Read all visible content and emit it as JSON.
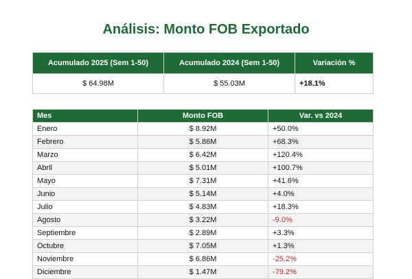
{
  "title": "Análisis: Monto FOB Exportado",
  "summary": {
    "headers": [
      "Acumulado 2025 (Sem 1-50)",
      "Acumulado 2024 (Sem 1-50)",
      "Variación %"
    ],
    "values": [
      "$ 64.98M",
      "$ 55.03M",
      "+18.1%"
    ]
  },
  "monthly": {
    "headers": [
      "Mes",
      "Monto FOB",
      "Var. vs 2024"
    ],
    "rows": [
      {
        "mes": "Enero",
        "monto": "$ 8.92M",
        "var": "+50.0%"
      },
      {
        "mes": "Febrero",
        "monto": "$ 5.86M",
        "var": "+68.3%"
      },
      {
        "mes": "Marzo",
        "monto": "$ 6.42M",
        "var": "+120.4%"
      },
      {
        "mes": "Abril",
        "monto": "$ 5.01M",
        "var": "+100.7%"
      },
      {
        "mes": "Mayo",
        "monto": "$ 7.31M",
        "var": "+41.6%"
      },
      {
        "mes": "Junio",
        "monto": "$ 5.14M",
        "var": "+4.0%"
      },
      {
        "mes": "Julio",
        "monto": "$ 4.83M",
        "var": "+18.3%"
      },
      {
        "mes": "Agosto",
        "monto": "$ 3.22M",
        "var": "-9.0%"
      },
      {
        "mes": "Septiembre",
        "monto": "$ 2.89M",
        "var": "+3.3%"
      },
      {
        "mes": "Octubre",
        "monto": "$ 7.05M",
        "var": "+1.3%"
      },
      {
        "mes": "Noviembre",
        "monto": "$ 6.86M",
        "var": "-25.2%"
      },
      {
        "mes": "Diciembre",
        "monto": "$ 1.47M",
        "var": "-79.2%"
      }
    ]
  },
  "colors": {
    "header_green": "#1e6b35",
    "negative_red": "#c0282d",
    "zebra_gray": "#f3f3f3"
  }
}
